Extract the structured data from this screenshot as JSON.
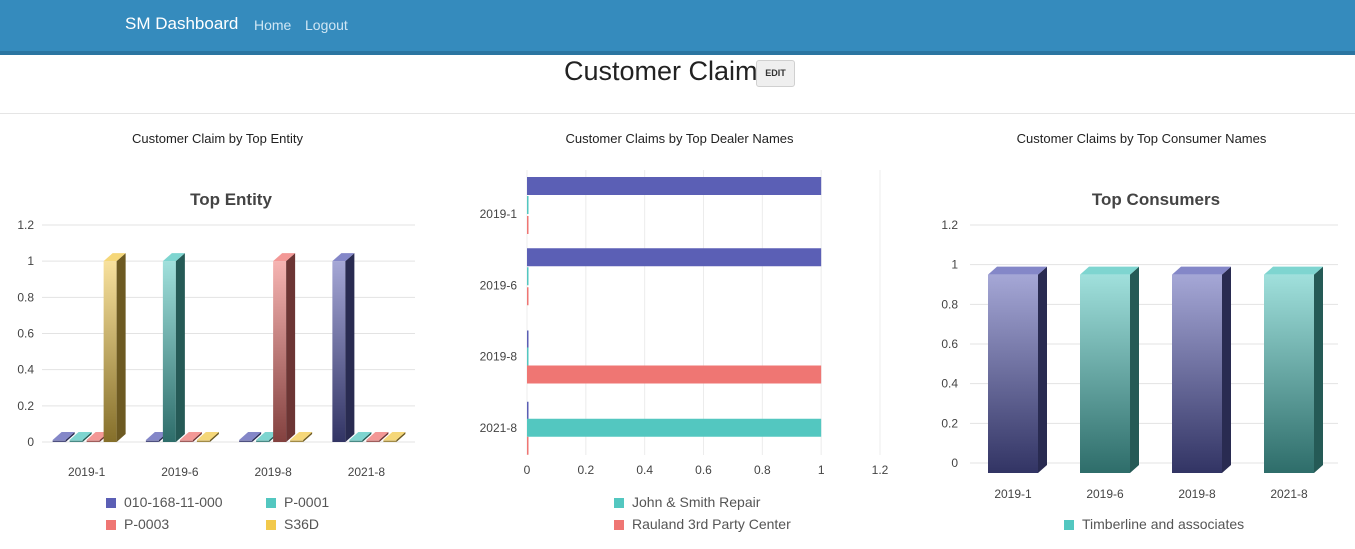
{
  "navbar": {
    "brand": "SM Dashboard",
    "links": [
      "Home",
      "Logout"
    ]
  },
  "header": {
    "title": "Customer Claim",
    "edit_label": "EDIT"
  },
  "colors": {
    "navbar": "#358bbd",
    "purple": "#5b5fb5",
    "teal": "#53c7c0",
    "red": "#ef7673",
    "yellow": "#f2c94c"
  },
  "panels": [
    {
      "title": "Customer Claim by Top Entity"
    },
    {
      "title": "Customer Claims by Top Dealer Names"
    },
    {
      "title": "Customer Claims by Top Consumer Names"
    }
  ],
  "chart_data": [
    {
      "type": "bar",
      "title": "Top Entity",
      "categories": [
        "2019-1",
        "2019-6",
        "2019-8",
        "2021-8"
      ],
      "ylim": [
        0,
        1.2
      ],
      "yticks": [
        "0",
        "0.2",
        "0.4",
        "0.6",
        "0.8",
        "1",
        "1.2"
      ],
      "grid": true,
      "legend_position": "bottom",
      "series": [
        {
          "name": "010-168-11-000",
          "color": "#5b5fb5",
          "values": [
            0,
            0,
            0,
            1
          ]
        },
        {
          "name": "P-0001",
          "color": "#53c7c0",
          "values": [
            0,
            1,
            0,
            0
          ]
        },
        {
          "name": "P-0003",
          "color": "#ef7673",
          "values": [
            0,
            0,
            1,
            0
          ]
        },
        {
          "name": "S36D",
          "color": "#f2c94c",
          "values": [
            1,
            0,
            0,
            0
          ]
        }
      ]
    },
    {
      "type": "bar",
      "orientation": "horizontal",
      "categories": [
        "2019-1",
        "2019-6",
        "2019-8",
        "2021-8"
      ],
      "xlim": [
        0,
        1.2
      ],
      "xticks": [
        "0",
        "0.2",
        "0.4",
        "0.6",
        "0.8",
        "1",
        "1.2"
      ],
      "grid": true,
      "legend_position": "bottom",
      "series": [
        {
          "color": "#5b5fb5",
          "values": [
            1,
            1,
            0,
            0
          ]
        },
        {
          "name": "John & Smith Repair",
          "color": "#53c7c0",
          "values": [
            0,
            0,
            0,
            1
          ]
        },
        {
          "name": "Rauland 3rd Party Center",
          "color": "#ef7673",
          "values": [
            0,
            0,
            1,
            0
          ]
        }
      ]
    },
    {
      "type": "bar",
      "title": "Top Consumers",
      "categories": [
        "2019-1",
        "2019-6",
        "2019-8",
        "2021-8"
      ],
      "ylim": [
        0,
        1.2
      ],
      "yticks": [
        "0",
        "0.2",
        "0.4",
        "0.6",
        "0.8",
        "1",
        "1.2"
      ],
      "grid": true,
      "legend_position": "bottom",
      "series": [
        {
          "name": "Timberline and associates",
          "color": "#53c7c0",
          "values": [
            1,
            1,
            1,
            1
          ]
        }
      ],
      "bar_colors": [
        "#5b5fb5",
        "#53c7c0",
        "#5b5fb5",
        "#53c7c0"
      ]
    }
  ]
}
